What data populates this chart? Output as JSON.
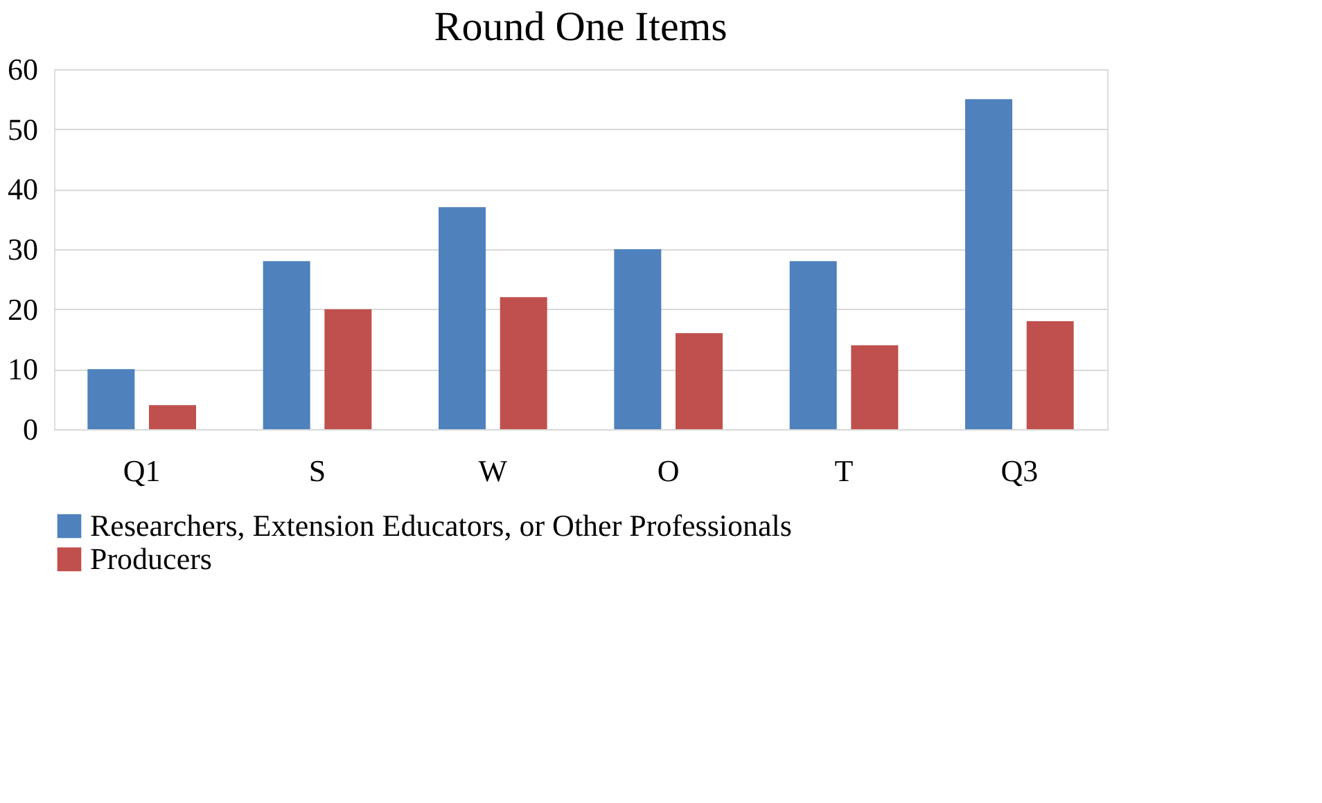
{
  "chart_data": {
    "type": "bar",
    "title": "Round One Items",
    "categories": [
      "Q1",
      "S",
      "W",
      "O",
      "T",
      "Q3"
    ],
    "series": [
      {
        "name": "Researchers, Extension Educators, or Other Professionals",
        "color": "#4f81bd",
        "values": [
          10,
          28,
          37,
          30,
          28,
          55
        ]
      },
      {
        "name": "Producers",
        "color": "#c0504d",
        "values": [
          4,
          20,
          22,
          16,
          14,
          18
        ]
      }
    ],
    "ylim": [
      0,
      60
    ],
    "yticks": [
      0,
      10,
      20,
      30,
      40,
      50,
      60
    ],
    "grid": "y",
    "legend": "bottom"
  }
}
